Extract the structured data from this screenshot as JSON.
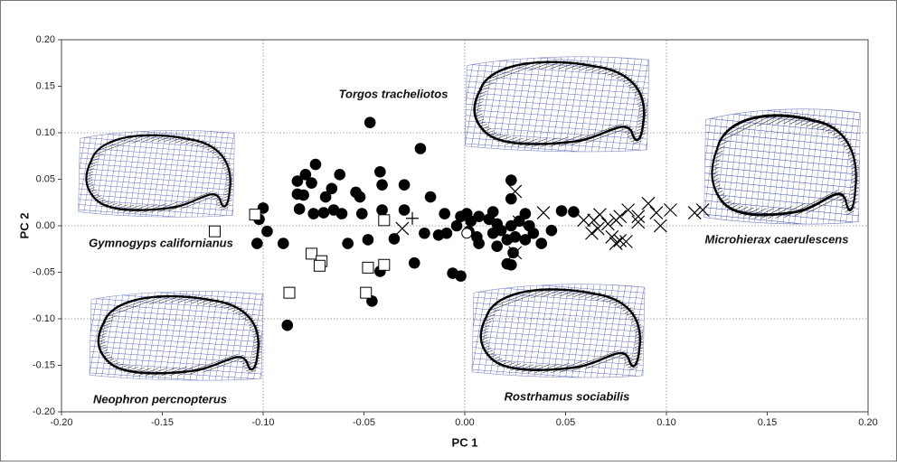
{
  "chart_data": {
    "type": "scatter",
    "xlabel": "PC 1",
    "ylabel": "PC 2",
    "xlim": [
      -0.2,
      0.2
    ],
    "ylim": [
      -0.2,
      0.2
    ],
    "xticks": [
      {
        "value": -0.2,
        "label": "-0.20"
      },
      {
        "value": -0.15,
        "label": "-0.15"
      },
      {
        "value": -0.1,
        "label": "-0.10"
      },
      {
        "value": -0.05,
        "label": "-0.05"
      },
      {
        "value": 0,
        "label": "0.00"
      },
      {
        "value": 0.05,
        "label": "0.05"
      },
      {
        "value": 0.1,
        "label": "0.10"
      },
      {
        "value": 0.15,
        "label": "0.15"
      },
      {
        "value": 0.2,
        "label": "0.20"
      }
    ],
    "yticks": [
      {
        "value": -0.2,
        "label": "-0.20"
      },
      {
        "value": -0.15,
        "label": "-0.15"
      },
      {
        "value": -0.1,
        "label": "-0.10"
      },
      {
        "value": -0.05,
        "label": "-0.05"
      },
      {
        "value": 0,
        "label": "0.00"
      },
      {
        "value": 0.05,
        "label": "0.05"
      },
      {
        "value": 0.1,
        "label": "0.10"
      },
      {
        "value": 0.15,
        "label": "0.15"
      },
      {
        "value": 0.2,
        "label": "0.20"
      }
    ],
    "xgrid": [
      -0.1,
      0,
      0.1
    ],
    "ygrid": [
      -0.1,
      0,
      0.1
    ],
    "annotations": [
      "Torgos tracheliotos",
      "Gymnogyps californianus",
      "Microhierax caerulescens",
      "Neophron percnopterus",
      "Rostrhamus sociabilis"
    ],
    "series": [
      {
        "marker": "filled-circle",
        "color": "#000000",
        "x": [
          -0.047,
          -0.022,
          -0.074,
          -0.062,
          -0.079,
          -0.083,
          -0.076,
          -0.052,
          -0.066,
          -0.042,
          -0.041,
          -0.083,
          -0.08,
          -0.069,
          -0.054,
          -0.03,
          -0.017,
          -0.03,
          -0.082,
          -0.065,
          -0.061,
          -0.075,
          -0.07,
          -0.1,
          -0.102,
          -0.051,
          -0.041,
          -0.098,
          -0.103,
          -0.09,
          -0.048,
          -0.035,
          -0.02,
          -0.013,
          -0.025,
          -0.009,
          -0.006,
          -0.002,
          -0.058,
          -0.042,
          -0.046,
          -0.088,
          0.023,
          0.023,
          -0.002,
          0.003,
          0.007,
          0.012,
          0.016,
          -0.004,
          0.002,
          0.006,
          0.014,
          0.018,
          0.023,
          0.027,
          0.032,
          0.034,
          0.03,
          0.025,
          0.021,
          0.007,
          0.016,
          0.024,
          0.021,
          0.023,
          0.038,
          0.043,
          0.048,
          0.054,
          0.03,
          0.014,
          0.001,
          -0.01
        ],
        "y": [
          0.111,
          0.083,
          0.066,
          0.055,
          0.055,
          0.048,
          0.046,
          0.031,
          0.04,
          0.058,
          0.044,
          0.034,
          0.033,
          0.031,
          0.036,
          0.044,
          0.031,
          0.017,
          0.018,
          0.017,
          0.013,
          0.013,
          0.014,
          0.019,
          0.007,
          0.013,
          0.017,
          -0.006,
          -0.019,
          -0.019,
          -0.015,
          -0.014,
          -0.008,
          -0.01,
          -0.04,
          -0.008,
          -0.051,
          -0.054,
          -0.019,
          -0.049,
          -0.081,
          -0.107,
          0.029,
          0.049,
          0.01,
          0.005,
          0.01,
          0.007,
          0.002,
          0.0,
          -0.006,
          -0.012,
          -0.008,
          -0.005,
          0.0,
          0.005,
          0.0,
          -0.008,
          -0.015,
          -0.012,
          -0.015,
          -0.019,
          -0.022,
          -0.029,
          -0.041,
          -0.042,
          -0.019,
          -0.005,
          0.016,
          0.015,
          0.013,
          0.015,
          0.013,
          0.013
        ]
      },
      {
        "marker": "open-square",
        "color": "#000000",
        "x": [
          -0.124,
          -0.104,
          -0.076,
          -0.071,
          -0.072,
          -0.04,
          -0.048,
          -0.04,
          -0.087,
          -0.049
        ],
        "y": [
          -0.006,
          0.012,
          -0.03,
          -0.038,
          -0.043,
          0.006,
          -0.045,
          -0.042,
          -0.072,
          -0.072
        ]
      },
      {
        "marker": "x",
        "color": "#000000",
        "x": [
          -0.031,
          0.025,
          0.039,
          0.025,
          0.027,
          0.059,
          0.064,
          0.067,
          0.071,
          0.075,
          0.077,
          0.073,
          0.077,
          0.08,
          0.075,
          0.081,
          0.086,
          0.091,
          0.086,
          0.097,
          0.095,
          0.102,
          0.114,
          0.118,
          0.063,
          0.066
        ],
        "y": [
          -0.003,
          0.037,
          0.014,
          -0.029,
          0.004,
          0.006,
          0.006,
          0.012,
          0.002,
          0.006,
          0.01,
          -0.012,
          -0.016,
          -0.017,
          -0.019,
          0.017,
          0.01,
          0.024,
          0.004,
          0.0,
          0.014,
          0.017,
          0.014,
          0.017,
          -0.008,
          -0.003
        ]
      },
      {
        "marker": "plus",
        "color": "#000000",
        "x": [
          -0.026
        ],
        "y": [
          0.008
        ]
      },
      {
        "marker": "open-circle",
        "color": "#000000",
        "x": [
          0.001
        ],
        "y": [
          -0.008
        ]
      }
    ]
  }
}
